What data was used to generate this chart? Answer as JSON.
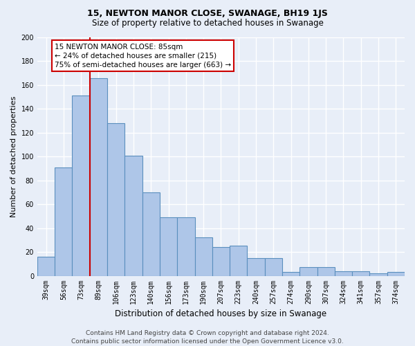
{
  "title": "15, NEWTON MANOR CLOSE, SWANAGE, BH19 1JS",
  "subtitle": "Size of property relative to detached houses in Swanage",
  "xlabel": "Distribution of detached houses by size in Swanage",
  "ylabel": "Number of detached properties",
  "categories": [
    "39sqm",
    "56sqm",
    "73sqm",
    "89sqm",
    "106sqm",
    "123sqm",
    "140sqm",
    "156sqm",
    "173sqm",
    "190sqm",
    "207sqm",
    "223sqm",
    "240sqm",
    "257sqm",
    "274sqm",
    "290sqm",
    "307sqm",
    "324sqm",
    "341sqm",
    "357sqm",
    "374sqm"
  ],
  "values": [
    16,
    91,
    151,
    166,
    128,
    101,
    70,
    49,
    49,
    32,
    24,
    25,
    15,
    15,
    3,
    7,
    7,
    4,
    4,
    2,
    3
  ],
  "bar_color": "#aec6e8",
  "bar_edge_color": "#5a8fbe",
  "background_color": "#e8eef8",
  "grid_color": "#ffffff",
  "vline_color": "#cc0000",
  "vline_pos": 2.5,
  "annotation_text": "15 NEWTON MANOR CLOSE: 85sqm\n← 24% of detached houses are smaller (215)\n75% of semi-detached houses are larger (663) →",
  "annotation_box_color": "#ffffff",
  "annotation_box_edge_color": "#cc0000",
  "footer_line1": "Contains HM Land Registry data © Crown copyright and database right 2024.",
  "footer_line2": "Contains public sector information licensed under the Open Government Licence v3.0.",
  "ylim": [
    0,
    200
  ],
  "yticks": [
    0,
    20,
    40,
    60,
    80,
    100,
    120,
    140,
    160,
    180,
    200
  ],
  "title_fontsize": 9,
  "subtitle_fontsize": 8.5,
  "ylabel_fontsize": 8,
  "xlabel_fontsize": 8.5,
  "tick_fontsize": 7,
  "annotation_fontsize": 7.5,
  "footer_fontsize": 6.5
}
